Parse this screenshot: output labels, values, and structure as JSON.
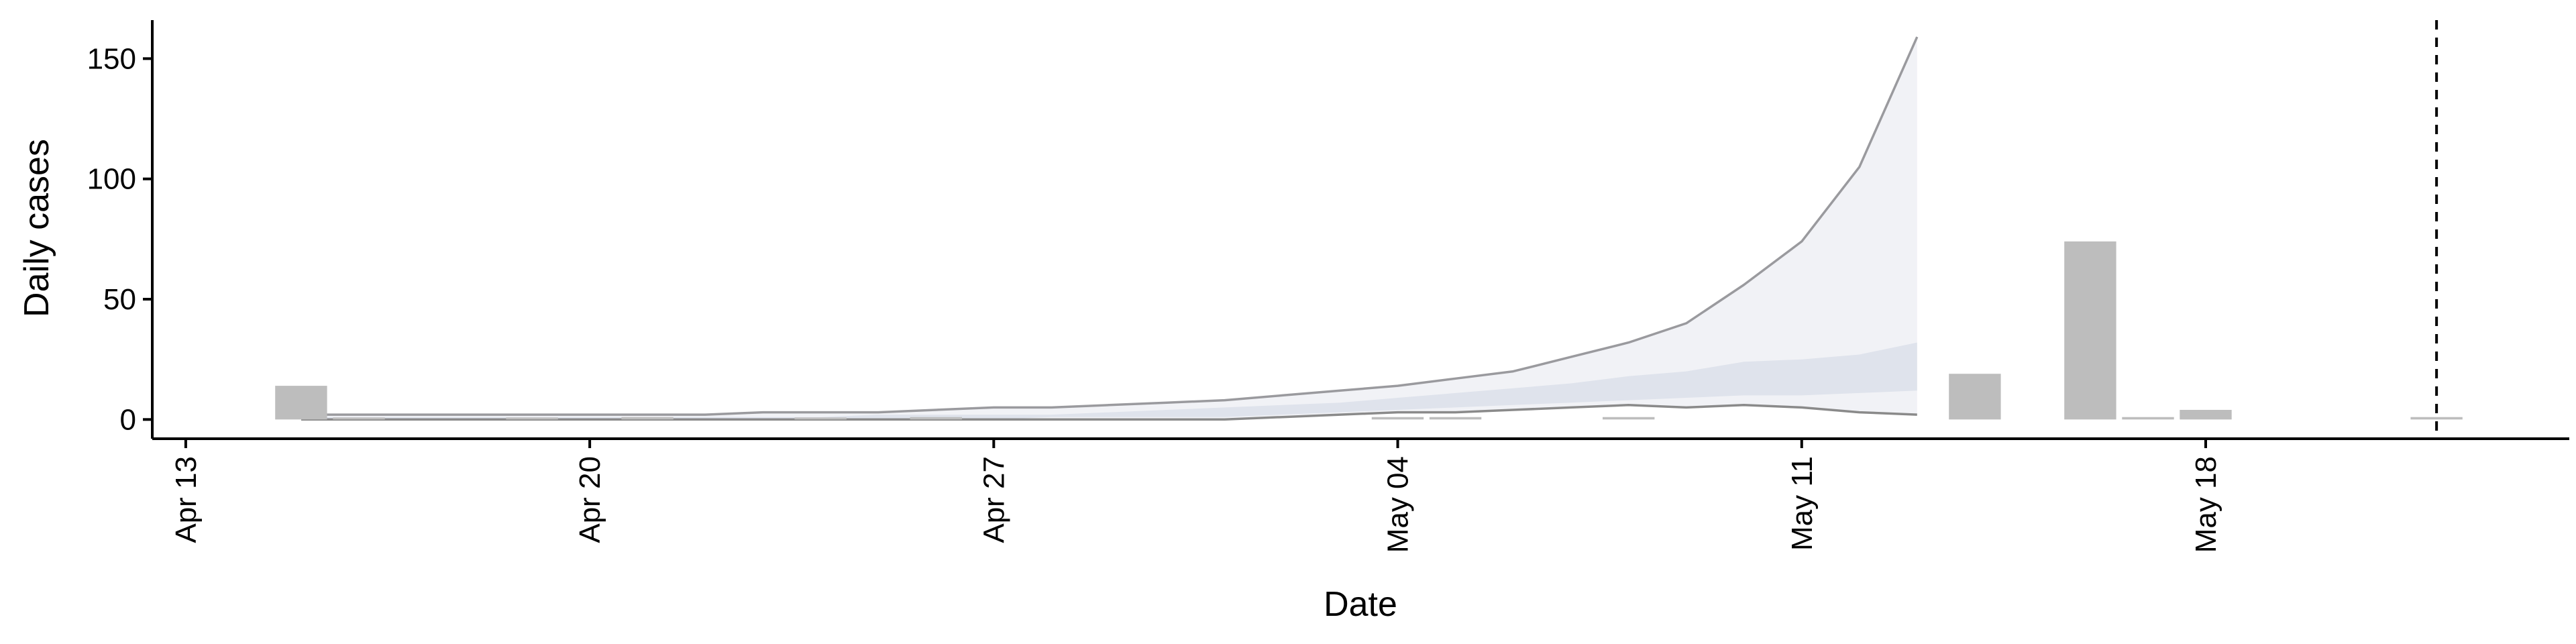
{
  "chart_data": {
    "type": "bar",
    "xlabel": "Date",
    "ylabel": "Daily cases",
    "x_range": [
      "2020-04-13",
      "2020-05-24"
    ],
    "ylim": [
      -8,
      166
    ],
    "x_ticks": [
      {
        "date": "2020-04-13",
        "label": "Apr 13"
      },
      {
        "date": "2020-04-20",
        "label": "Apr 20"
      },
      {
        "date": "2020-04-27",
        "label": "Apr 27"
      },
      {
        "date": "2020-05-04",
        "label": "May 04"
      },
      {
        "date": "2020-05-11",
        "label": "May 11"
      },
      {
        "date": "2020-05-18",
        "label": "May 18"
      }
    ],
    "y_ticks": [
      {
        "value": 0,
        "label": "0"
      },
      {
        "value": 50,
        "label": "50"
      },
      {
        "value": 100,
        "label": "100"
      },
      {
        "value": 150,
        "label": "150"
      }
    ],
    "grid": false,
    "legend": "none",
    "bars": [
      {
        "date": "2020-04-15",
        "value": 14
      },
      {
        "date": "2020-04-16",
        "value": 0
      },
      {
        "date": "2020-04-19",
        "value": 0
      },
      {
        "date": "2020-04-21",
        "value": 1
      },
      {
        "date": "2020-04-24",
        "value": 0
      },
      {
        "date": "2020-04-26",
        "value": 1
      },
      {
        "date": "2020-05-04",
        "value": 1
      },
      {
        "date": "2020-05-05",
        "value": 1
      },
      {
        "date": "2020-05-08",
        "value": 1
      },
      {
        "date": "2020-05-14",
        "value": 19
      },
      {
        "date": "2020-05-16",
        "value": 74
      },
      {
        "date": "2020-05-17",
        "value": 1
      },
      {
        "date": "2020-05-18",
        "value": 4
      },
      {
        "date": "2020-05-22",
        "value": 1
      }
    ],
    "forecast": {
      "dates": [
        "2020-04-15",
        "2020-04-16",
        "2020-04-17",
        "2020-04-18",
        "2020-04-19",
        "2020-04-20",
        "2020-04-21",
        "2020-04-22",
        "2020-04-23",
        "2020-04-24",
        "2020-04-25",
        "2020-04-26",
        "2020-04-27",
        "2020-04-28",
        "2020-04-29",
        "2020-04-30",
        "2020-05-01",
        "2020-05-02",
        "2020-05-03",
        "2020-05-04",
        "2020-05-05",
        "2020-05-06",
        "2020-05-07",
        "2020-05-08",
        "2020-05-09",
        "2020-05-10",
        "2020-05-11",
        "2020-05-12",
        "2020-05-13"
      ],
      "outer_upper": [
        2,
        2,
        2,
        2,
        2,
        2,
        2,
        2,
        3,
        3,
        3,
        4,
        5,
        5,
        6,
        7,
        8,
        10,
        12,
        14,
        17,
        20,
        26,
        32,
        40,
        56,
        74,
        105,
        159
      ],
      "outer_lower": [
        0,
        0,
        0,
        0,
        0,
        0,
        0,
        0,
        0,
        0,
        0,
        0,
        0,
        0,
        0,
        0,
        0,
        1,
        2,
        3,
        3,
        4,
        5,
        6,
        5,
        6,
        5,
        3,
        2
      ],
      "inner_upper": [
        1,
        1,
        1,
        1,
        1,
        1,
        1,
        1,
        1,
        1,
        2,
        2,
        2,
        2,
        3,
        4,
        5,
        6,
        7,
        9,
        11,
        13,
        15,
        18,
        20,
        24,
        25,
        27,
        32
      ],
      "inner_lower": [
        0,
        0,
        0,
        0,
        0,
        0,
        0,
        0,
        0,
        0,
        0,
        0,
        0,
        1,
        1,
        1,
        1,
        2,
        3,
        4,
        5,
        6,
        7,
        8,
        9,
        10,
        10,
        11,
        12
      ]
    },
    "vline_date": "2020-05-22",
    "colors": {
      "bars": "#bdbdbd",
      "outer_band": "#f1f2f6",
      "inner_band": "#dfe3ec",
      "band_line_upper": "#9a9a9e",
      "band_line_lower": "#8a8a8a",
      "axis": "#000000",
      "vline": "#000000"
    }
  }
}
